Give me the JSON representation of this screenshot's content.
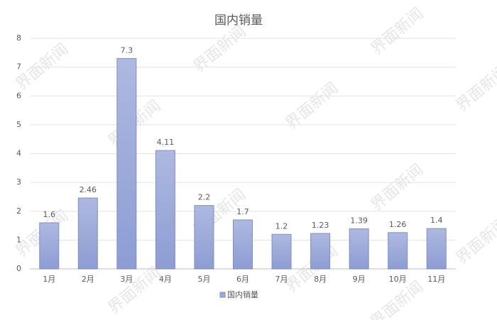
{
  "chart_data": {
    "type": "bar",
    "title": "国内销量",
    "watermark": "界面新闻",
    "categories": [
      "1月",
      "2月",
      "3月",
      "4月",
      "5月",
      "6月",
      "7月",
      "8月",
      "9月",
      "10月",
      "11月"
    ],
    "series": [
      {
        "name": "国内销量",
        "color": "#9aa9da",
        "values": [
          1.6,
          2.46,
          7.3,
          4.11,
          2.2,
          1.7,
          1.2,
          1.23,
          1.39,
          1.26,
          1.4
        ]
      }
    ],
    "ylim": [
      0,
      8
    ],
    "yticks": [
      0,
      1,
      2,
      3,
      4,
      5,
      6,
      7,
      8
    ],
    "grid": true,
    "legend": "bottom"
  }
}
